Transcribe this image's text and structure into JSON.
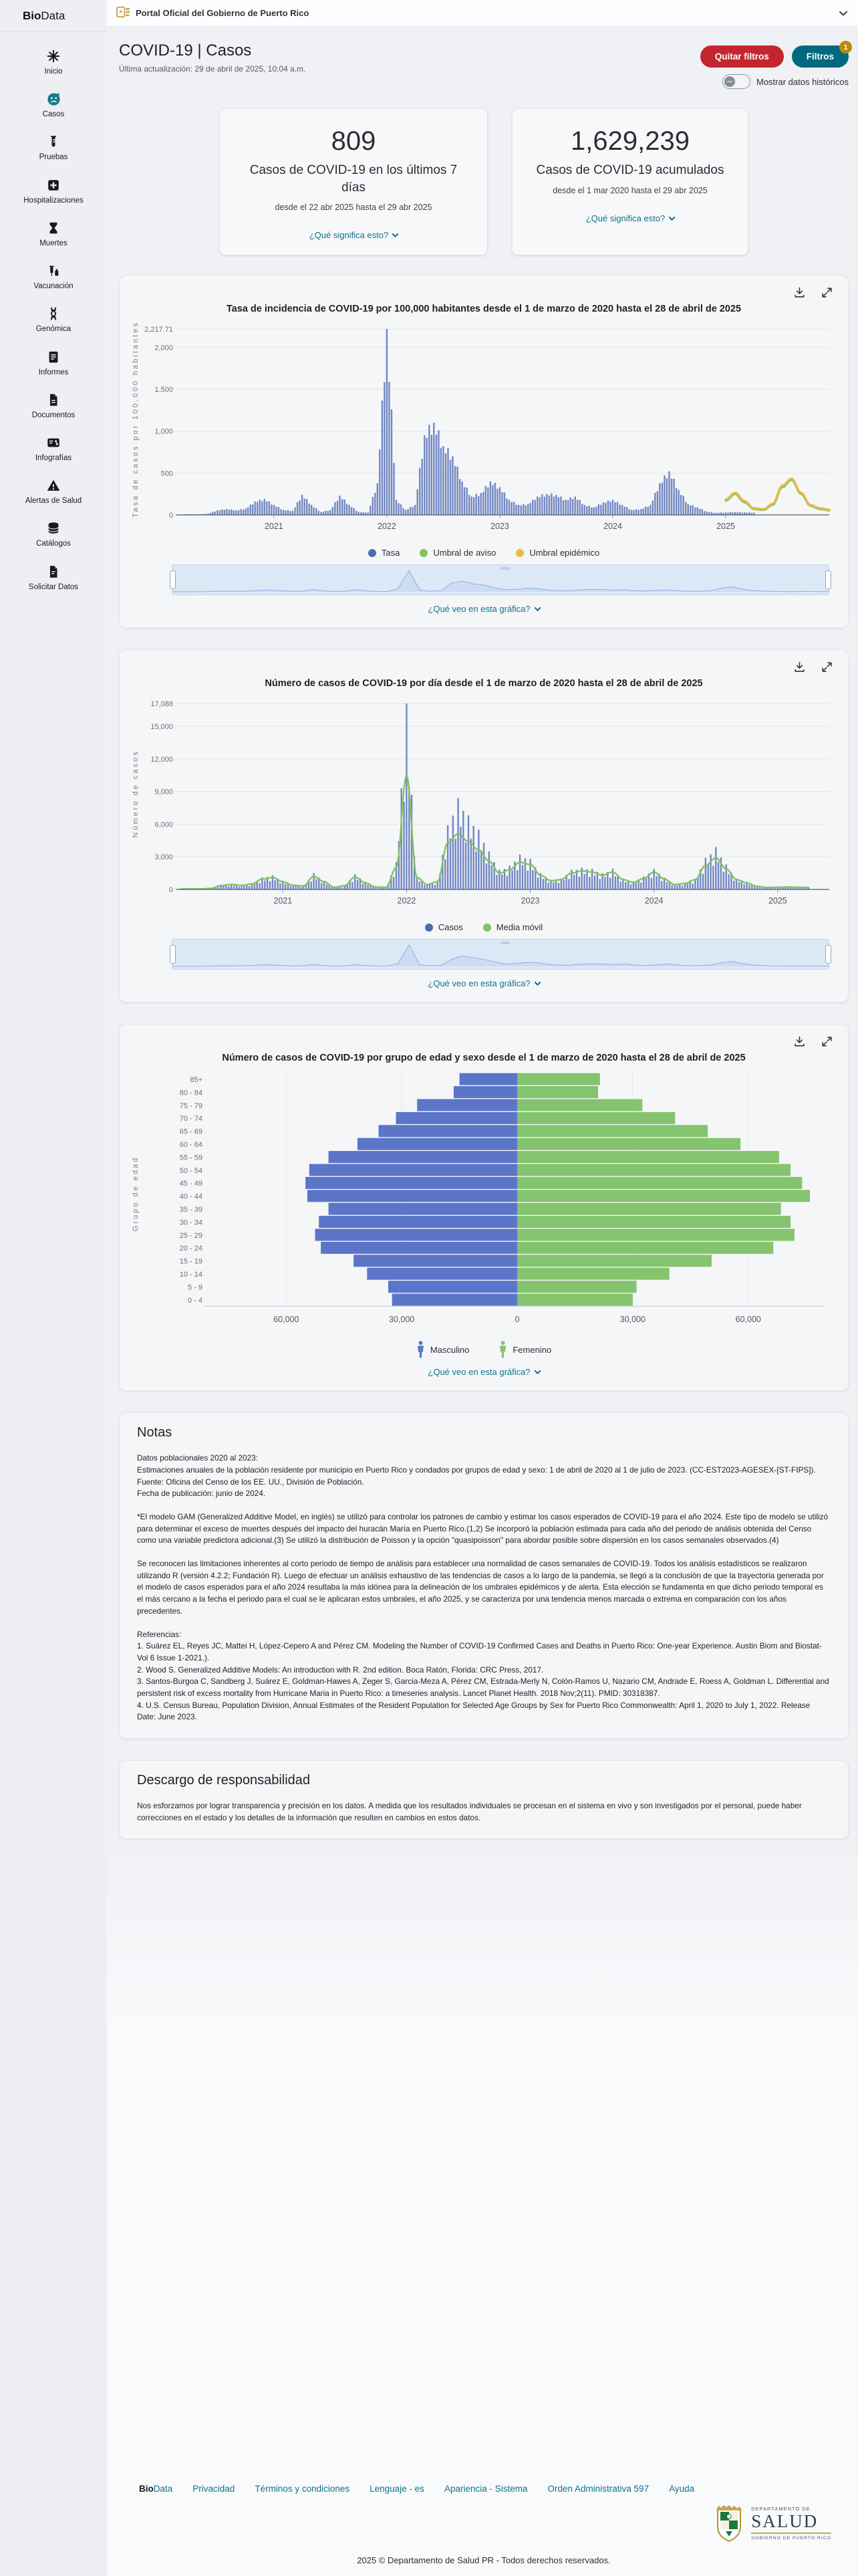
{
  "banner": {
    "text": "Portal Oficial del Gobierno de Puerto Rico"
  },
  "sidebar": {
    "logo_bold": "Bio",
    "logo_rest": "Data",
    "items": [
      {
        "id": "inicio",
        "label": "Inicio",
        "icon": "virus-icon",
        "active": false
      },
      {
        "id": "casos",
        "label": "Casos",
        "icon": "sick-face-icon",
        "active": true
      },
      {
        "id": "pruebas",
        "label": "Pruebas",
        "icon": "test-tube-icon",
        "active": false
      },
      {
        "id": "hospitalizaciones",
        "label": "Hospitalizaciones",
        "icon": "hospital-plus-icon",
        "active": false
      },
      {
        "id": "muertes",
        "label": "Muertes",
        "icon": "hourglass-icon",
        "active": false
      },
      {
        "id": "vacunacion",
        "label": "Vacunación",
        "icon": "syringe-icon",
        "active": false
      },
      {
        "id": "genomica",
        "label": "Genómica",
        "icon": "dna-icon",
        "active": false
      },
      {
        "id": "informes",
        "label": "Informes",
        "icon": "report-icon",
        "active": false
      },
      {
        "id": "documentos",
        "label": "Documentos",
        "icon": "document-icon",
        "active": false
      },
      {
        "id": "infografias",
        "label": "Infografías",
        "icon": "infographic-icon",
        "active": false
      },
      {
        "id": "alertas",
        "label": "Alertas de Salud",
        "icon": "alert-triangle-icon",
        "active": false
      },
      {
        "id": "catalogos",
        "label": "Catálogos",
        "icon": "database-icon",
        "active": false
      },
      {
        "id": "solicitar",
        "label": "Solicitar Datos",
        "icon": "file-request-icon",
        "active": false
      }
    ]
  },
  "header": {
    "title": "COVID-19 | Casos",
    "updated": "Última actualización: 29 de abril de 2025, 10:04 a.m.",
    "remove_filters": "Quitar filtros",
    "filters": "Filtros",
    "filters_badge": "1",
    "toggle_label": "Mostrar datos históricos"
  },
  "cards": [
    {
      "name": "cases-7-days-card",
      "value": "809",
      "line1": "Casos de COVID-19 en los últimos 7 días",
      "line2": "desde el 22 abr 2025 hasta el 29 abr 2025",
      "link": "¿Qué significa esto?"
    },
    {
      "name": "cases-cumulative-card",
      "value": "1,629,239",
      "line1": "Casos de COVID-19 acumulados",
      "line2": "desde el 1 mar 2020 hasta el 29 abr 2025",
      "link": "¿Qué significa esto?"
    }
  ],
  "colors": {
    "bar_blue": "#5e78bb",
    "legend_blue": "#4f6bb0",
    "green": "#82c262",
    "yellow": "#e7bc47",
    "pyramid_blue": "#5b75c9",
    "pyramid_green": "#85c46e",
    "nav_fill": "#c9d9f2",
    "nav_line": "#8fb0dd",
    "link_teal": "#0d7389",
    "button_red": "#c2262e",
    "button_teal": "#00697f",
    "badge_amber": "#bd8a0b"
  },
  "chart_data": [
    {
      "type": "bar",
      "title": "Tasa de incidencia de COVID-19 por 100,000 habitantes desde el 1 de marzo de 2020 hasta el 28 de abril de 2025",
      "ylabel": "Tasa de casos por 100,000 habitantes",
      "x_range": "2020-03 a 2025-12",
      "x_ticks": [
        {
          "label": "2021",
          "m": 10
        },
        {
          "label": "2022",
          "m": 22
        },
        {
          "label": "2023",
          "m": 34
        },
        {
          "label": "2024",
          "m": 46
        },
        {
          "label": "2025",
          "m": 58
        }
      ],
      "y_ticks": [
        0,
        500,
        1000,
        1500,
        2000,
        2217.71
      ],
      "ylim": [
        0,
        2217.71
      ],
      "monthly_rate": [
        5,
        10,
        8,
        15,
        55,
        70,
        55,
        75,
        160,
        190,
        120,
        60,
        50,
        240,
        120,
        35,
        60,
        230,
        120,
        35,
        30,
        380,
        2217.71,
        180,
        60,
        120,
        950,
        1100,
        820,
        700,
        400,
        220,
        260,
        400,
        330,
        180,
        120,
        130,
        220,
        250,
        240,
        180,
        220,
        120,
        90,
        150,
        180,
        120,
        60,
        70,
        120,
        380,
        520,
        300,
        130,
        90,
        40,
        25,
        30,
        35,
        30,
        28
      ],
      "thresholds": {
        "start_m": 58,
        "umbral_de_aviso": [
          170,
          250,
          150,
          70,
          60,
          120,
          330,
          420,
          250,
          110,
          70,
          55
        ],
        "umbral_epidemico": [
          185,
          265,
          165,
          80,
          70,
          135,
          350,
          435,
          265,
          120,
          80,
          65
        ]
      },
      "legend": [
        {
          "label": "Tasa",
          "color": "#4f6bb0"
        },
        {
          "label": "Umbral de aviso",
          "color": "#82c262"
        },
        {
          "label": "Umbral epidémico",
          "color": "#e7bc47"
        }
      ],
      "what_link": "¿Qué veo en esta gráfica?"
    },
    {
      "type": "bar+line",
      "title": "Número de casos de COVID-19 por día desde el 1 de marzo de 2020 hasta el 28 de abril de 2025",
      "ylabel": "Número de casos",
      "x_range": "2020-03 a 2025-05",
      "x_ticks": [
        {
          "label": "2021",
          "m": 10
        },
        {
          "label": "2022",
          "m": 22
        },
        {
          "label": "2023",
          "m": 34
        },
        {
          "label": "2024",
          "m": 46
        },
        {
          "label": "2025",
          "m": 58
        }
      ],
      "y_ticks": [
        0,
        3000,
        6000,
        9000,
        12000,
        15000,
        17088
      ],
      "ylim": [
        0,
        17088
      ],
      "monthly_cases": [
        30,
        60,
        50,
        100,
        400,
        500,
        400,
        550,
        1100,
        1300,
        800,
        400,
        350,
        1500,
        800,
        200,
        400,
        1400,
        700,
        250,
        200,
        2500,
        17088,
        1200,
        500,
        800,
        5900,
        8400,
        6800,
        5500,
        3500,
        1800,
        2200,
        3200,
        2800,
        1500,
        900,
        1000,
        1800,
        2000,
        1900,
        1500,
        1900,
        1000,
        700,
        1200,
        1900,
        1100,
        500,
        600,
        1000,
        2900,
        3900,
        2300,
        1000,
        700,
        300,
        200,
        250,
        280,
        230,
        200
      ],
      "media_movil": [
        25,
        50,
        45,
        90,
        350,
        450,
        380,
        500,
        950,
        1100,
        700,
        380,
        320,
        1200,
        700,
        190,
        350,
        1150,
        600,
        230,
        190,
        2000,
        10500,
        1100,
        450,
        700,
        4300,
        5100,
        4400,
        3600,
        2600,
        1500,
        1800,
        2500,
        2300,
        1300,
        800,
        900,
        1500,
        1700,
        1600,
        1300,
        1600,
        900,
        650,
        1000,
        1600,
        950,
        450,
        550,
        900,
        2200,
        2900,
        1900,
        900,
        600,
        280,
        180,
        200,
        230,
        200,
        180
      ],
      "legend": [
        {
          "label": "Casos",
          "color": "#4f6bb0"
        },
        {
          "label": "Media móvil",
          "color": "#82c262"
        }
      ],
      "what_link": "¿Qué veo en esta gráfica?"
    },
    {
      "type": "pyramid",
      "title": "Número de casos de COVID-19 por grupo de edad y sexo desde el 1 de marzo de 2020 hasta el 28 de abril de 2025",
      "ylabel": "Grupo de edad",
      "age_groups": [
        "85+",
        "80 - 84",
        "75 - 79",
        "70 - 74",
        "65 - 69",
        "60 - 64",
        "55 - 59",
        "50 - 54",
        "45 - 49",
        "40 - 44",
        "35 - 39",
        "30 - 34",
        "25 - 29",
        "20 - 24",
        "15 - 19",
        "10 - 14",
        "5 - 9",
        "0 - 4"
      ],
      "masculino": [
        15000,
        16500,
        26000,
        31500,
        36000,
        41500,
        49000,
        54000,
        55000,
        54500,
        49000,
        51500,
        52500,
        51000,
        42500,
        39000,
        33500,
        32500
      ],
      "femenino": [
        21500,
        21000,
        32500,
        41000,
        49500,
        58000,
        68000,
        71000,
        74000,
        76000,
        68500,
        71000,
        72000,
        66500,
        50500,
        39500,
        31000,
        30000
      ],
      "x_ticks": [
        -60000,
        -30000,
        0,
        30000,
        60000
      ],
      "xlim": [
        -80000,
        80000
      ],
      "legend": [
        {
          "label": "Masculino",
          "color": "#5b75c9"
        },
        {
          "label": "Femenino",
          "color": "#85c46e"
        }
      ],
      "what_link": "¿Qué veo en esta gráfica?"
    }
  ],
  "notas": {
    "title": "Notas",
    "blocks": [
      [
        "Datos poblacionales 2020 al 2023:",
        "Estimaciones anuales de la población residente por municipio en Puerto Rico y condados por grupos de edad y sexo: 1 de abril de 2020 al 1 de julio de 2023. (CC-EST2023-AGESEX-[ST-FIPS]).",
        "Fuente: Oficina del Censo de los EE. UU., División de Población.",
        "Fecha de publicación: junio de 2024."
      ],
      [
        "*El modelo GAM (Generalized Additive Model, en inglés) se utilizó para controlar los patrones de cambio y estimar los casos esperados de COVID-19 para el año 2024. Este tipo de modelo se utilizó para determinar el exceso de muertes después del impacto del huracán María en Puerto Rico.(1,2) Se incorporó la población estimada para cada año del periodo de análisis obtenida del Censo como una variable predictora adicional.(3) Se utilizó la distribución de Poisson y la opción \"quasipoisson\" para abordar posible sobre dispersión en los casos semanales observados.(4)"
      ],
      [
        "Se reconocen las limitaciones inherentes al corto periodo de tiempo de análisis para establecer una normalidad de casos semanales de COVID-19. Todos los análisis estadísticos se realizaron utilizando R (versión 4.2.2; Fundación R). Luego de efectuar un análisis exhaustivo de las tendencias de casos a lo largo de la pandemia, se llegó a la conclusión de que la trayectoria generada por el modelo de casos esperados para el año 2024 resultaba la más idónea para la delineación de los umbrales epidémicos y de alerta. Esta elección se fundamenta en que dicho periodo temporal es el más cercano a la fecha el periodo para el cual se le aplicaran estos umbrales, el año 2025, y se caracteriza por una tendencia menos marcada o extrema en comparación con los años precedentes."
      ],
      [
        "Referencias:",
        "1. Suárez EL, Reyes JC, Mattei H, López-Cepero A and Pérez CM. Modeling the Number of COVID-19 Confirmed Cases and Deaths in Puerto Rico: One-year Experience. Austin Biom and Biostat-Vol 6 Issue 1-2021.).",
        "2. Wood S. Generalized Additive Models: An introduction with R. 2nd edition. Boca Ratón, Florida: CRC Press, 2017.",
        "3. Santos-Burgoa C, Sandberg J, Suárez E, Goldman-Hawes A, Zeger S, Garcia-Meza A, Pérez CM, Estrada-Merly N, Colón-Ramos U, Nazario CM, Andrade E, Roess A, Goldman L. Differential and persistent risk of excess mortality from Hurricane Maria in Puerto Rico: a timeseries analysis. Lancet Planet Health. 2018 Nov;2(11). PMID: 30318387.",
        "4. U.S. Census Bureau, Population Division, Annual Estimates of the Resident Population for Selected Age Groups by Sex for Puerto Rico Commonwealth: April 1, 2020 to July 1, 2022. Release Date: June 2023."
      ]
    ]
  },
  "descargo": {
    "title": "Descargo de responsabilidad",
    "text": "Nos esforzamos por lograr transparencia y precisión en los datos. A medida que los resultados individuales se procesan en el sistema en vivo y son investigados por el personal, puede haber correcciones en el estado y los detalles de la información que resulten en cambios en estos datos."
  },
  "footer": {
    "links": [
      {
        "id": "biodata",
        "label": "BioData",
        "bold_prefix": "Bio"
      },
      {
        "id": "privacidad",
        "label": "Privacidad"
      },
      {
        "id": "terminos",
        "label": "Términos y condiciones"
      },
      {
        "id": "lenguaje",
        "label": "Lenguaje - es"
      },
      {
        "id": "apariencia",
        "label": "Apariencia - Sistema"
      },
      {
        "id": "orden",
        "label": "Orden Administrativa 597"
      },
      {
        "id": "ayuda",
        "label": "Ayuda"
      }
    ],
    "logo": {
      "line1": "DEPARTAMENTO DE",
      "line2": "SALUD",
      "line3": "GOBIERNO DE PUERTO RICO"
    },
    "copyright": "2025 © Departamento de Salud PR - Todos derechos reservados."
  }
}
